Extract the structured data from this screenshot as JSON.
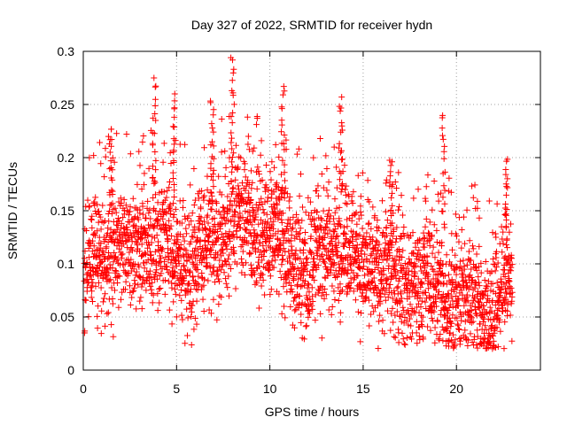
{
  "chart_data": {
    "type": "scatter",
    "title": "Day 327 of 2022, SRMTID for receiver hydn",
    "xlabel": "GPS time / hours",
    "ylabel": "SRMTID / TECUs",
    "xlim": [
      0,
      24.5
    ],
    "ylim": [
      0,
      0.3
    ],
    "x_ticks": [
      0,
      5,
      10,
      15,
      20
    ],
    "y_ticks": [
      0,
      0.05,
      0.1,
      0.15,
      0.2,
      0.25,
      0.3
    ],
    "x_tick_labels": [
      "0",
      "5",
      "10",
      "15",
      "20"
    ],
    "y_tick_labels": [
      "0",
      "0.05",
      "0.1",
      "0.15",
      "0.2",
      "0.25",
      "0.3"
    ],
    "grid": true,
    "marker": "+",
    "color": "#ff0000",
    "x_end": 23.0,
    "point_spacing_hours": 0.0167,
    "envelope": {
      "description": "approximate baseline level of SRMTID vs time (hours, TECU)",
      "x": [
        0,
        1,
        2,
        3,
        4,
        5,
        6,
        7,
        8,
        9,
        10,
        11,
        12,
        13,
        14,
        15,
        16,
        17,
        18,
        19,
        20,
        21,
        22,
        23
      ],
      "y": [
        0.1,
        0.11,
        0.115,
        0.115,
        0.12,
        0.11,
        0.1,
        0.12,
        0.14,
        0.14,
        0.13,
        0.11,
        0.09,
        0.12,
        0.12,
        0.1,
        0.09,
        0.085,
        0.08,
        0.08,
        0.065,
        0.07,
        0.055,
        0.09
      ]
    },
    "spikes": [
      {
        "x": 1.5,
        "y": 0.23
      },
      {
        "x": 3.8,
        "y": 0.275
      },
      {
        "x": 4.9,
        "y": 0.26
      },
      {
        "x": 6.9,
        "y": 0.255
      },
      {
        "x": 8.0,
        "y": 0.297
      },
      {
        "x": 10.7,
        "y": 0.267
      },
      {
        "x": 13.8,
        "y": 0.257
      },
      {
        "x": 16.5,
        "y": 0.2
      },
      {
        "x": 19.3,
        "y": 0.24
      },
      {
        "x": 22.7,
        "y": 0.2
      }
    ]
  }
}
